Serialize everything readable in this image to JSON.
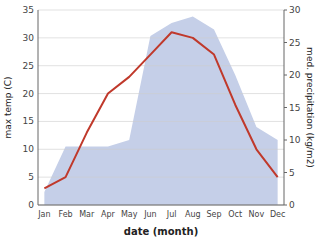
{
  "chart_data": {
    "type": "line",
    "categories": [
      "Jan",
      "Feb",
      "Mar",
      "Apr",
      "May",
      "Jun",
      "Jul",
      "Aug",
      "Sep",
      "Oct",
      "Nov",
      "Dec"
    ],
    "xlabel": "date (month)",
    "ylabel": "max temp (C)",
    "y2label": "med. precipitation (kg/m2)",
    "series": [
      {
        "type": "area",
        "axis": "y2",
        "color": "#c5cfe8",
        "values": [
          2,
          9,
          9,
          9,
          10,
          26,
          28,
          29,
          27,
          20,
          12,
          10
        ]
      },
      {
        "type": "line",
        "color": "#c0392b",
        "values": [
          3,
          5,
          13,
          20,
          23,
          27,
          31,
          30,
          27,
          18,
          10,
          5
        ]
      }
    ],
    "ylim": [
      0,
      35
    ],
    "yticks": [
      0,
      5,
      10,
      15,
      20,
      25,
      30,
      35
    ],
    "y2lim": [
      0,
      30
    ],
    "y2ticks": [
      0,
      5,
      10,
      15,
      20,
      25,
      30
    ],
    "grid": true
  }
}
